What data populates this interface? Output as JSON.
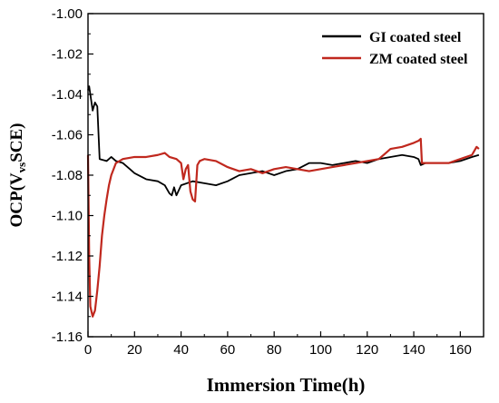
{
  "chart_data": {
    "type": "line",
    "xlabel": "Immersion Time(h)",
    "ylabel": {
      "main": "OCP(V",
      "sub": "vs",
      "tail": "SCE)"
    },
    "xlim": [
      0,
      170
    ],
    "ylim": [
      -1.16,
      -1.0
    ],
    "x_ticks": [
      0,
      20,
      40,
      60,
      80,
      100,
      120,
      140,
      160
    ],
    "x_tick_labels": [
      "0",
      "20",
      "40",
      "60",
      "80",
      "100",
      "120",
      "140",
      "160"
    ],
    "y_ticks": [
      -1.16,
      -1.14,
      -1.12,
      -1.1,
      -1.08,
      -1.06,
      -1.04,
      -1.02,
      -1.0
    ],
    "y_tick_labels": [
      "-1.16",
      "-1.14",
      "-1.12",
      "-1.10",
      "-1.08",
      "-1.06",
      "-1.04",
      "-1.02",
      "-1.00"
    ],
    "grid": false,
    "legend_position": "top-right",
    "series": [
      {
        "name": "GI coated steel",
        "color": "#000000",
        "points": [
          [
            0,
            -1.038
          ],
          [
            0.5,
            -1.036
          ],
          [
            1,
            -1.04
          ],
          [
            2,
            -1.048
          ],
          [
            3,
            -1.044
          ],
          [
            4,
            -1.046
          ],
          [
            5,
            -1.072
          ],
          [
            8,
            -1.073
          ],
          [
            10,
            -1.071
          ],
          [
            12,
            -1.073
          ],
          [
            15,
            -1.074
          ],
          [
            18,
            -1.077
          ],
          [
            20,
            -1.079
          ],
          [
            25,
            -1.082
          ],
          [
            30,
            -1.083
          ],
          [
            33,
            -1.085
          ],
          [
            35,
            -1.089
          ],
          [
            36,
            -1.09
          ],
          [
            37,
            -1.086
          ],
          [
            38,
            -1.09
          ],
          [
            40,
            -1.085
          ],
          [
            45,
            -1.083
          ],
          [
            50,
            -1.084
          ],
          [
            55,
            -1.085
          ],
          [
            60,
            -1.083
          ],
          [
            65,
            -1.08
          ],
          [
            70,
            -1.079
          ],
          [
            75,
            -1.078
          ],
          [
            80,
            -1.08
          ],
          [
            85,
            -1.078
          ],
          [
            90,
            -1.077
          ],
          [
            95,
            -1.074
          ],
          [
            100,
            -1.074
          ],
          [
            105,
            -1.075
          ],
          [
            110,
            -1.074
          ],
          [
            115,
            -1.073
          ],
          [
            120,
            -1.074
          ],
          [
            125,
            -1.072
          ],
          [
            130,
            -1.071
          ],
          [
            135,
            -1.07
          ],
          [
            140,
            -1.071
          ],
          [
            142,
            -1.072
          ],
          [
            143,
            -1.075
          ],
          [
            145,
            -1.074
          ],
          [
            150,
            -1.074
          ],
          [
            155,
            -1.074
          ],
          [
            160,
            -1.073
          ],
          [
            165,
            -1.071
          ],
          [
            168,
            -1.07
          ]
        ]
      },
      {
        "name": "ZM coated steel",
        "color": "#c0281e",
        "points": [
          [
            0,
            -1.07
          ],
          [
            0.5,
            -1.12
          ],
          [
            1,
            -1.145
          ],
          [
            2,
            -1.15
          ],
          [
            3,
            -1.147
          ],
          [
            4,
            -1.137
          ],
          [
            5,
            -1.125
          ],
          [
            6,
            -1.11
          ],
          [
            7,
            -1.1
          ],
          [
            8,
            -1.092
          ],
          [
            9,
            -1.085
          ],
          [
            10,
            -1.08
          ],
          [
            12,
            -1.074
          ],
          [
            15,
            -1.072
          ],
          [
            20,
            -1.071
          ],
          [
            25,
            -1.071
          ],
          [
            30,
            -1.07
          ],
          [
            33,
            -1.069
          ],
          [
            35,
            -1.071
          ],
          [
            38,
            -1.072
          ],
          [
            40,
            -1.074
          ],
          [
            41,
            -1.082
          ],
          [
            42,
            -1.077
          ],
          [
            43,
            -1.075
          ],
          [
            44,
            -1.088
          ],
          [
            45,
            -1.092
          ],
          [
            46,
            -1.093
          ],
          [
            47,
            -1.075
          ],
          [
            48,
            -1.073
          ],
          [
            50,
            -1.072
          ],
          [
            55,
            -1.073
          ],
          [
            60,
            -1.076
          ],
          [
            65,
            -1.078
          ],
          [
            70,
            -1.077
          ],
          [
            75,
            -1.079
          ],
          [
            80,
            -1.077
          ],
          [
            85,
            -1.076
          ],
          [
            90,
            -1.077
          ],
          [
            95,
            -1.078
          ],
          [
            100,
            -1.077
          ],
          [
            105,
            -1.076
          ],
          [
            110,
            -1.075
          ],
          [
            115,
            -1.074
          ],
          [
            120,
            -1.073
          ],
          [
            125,
            -1.072
          ],
          [
            128,
            -1.069
          ],
          [
            130,
            -1.067
          ],
          [
            135,
            -1.066
          ],
          [
            140,
            -1.064
          ],
          [
            142,
            -1.063
          ],
          [
            143,
            -1.062
          ],
          [
            143.5,
            -1.074
          ],
          [
            145,
            -1.074
          ],
          [
            150,
            -1.074
          ],
          [
            155,
            -1.074
          ],
          [
            160,
            -1.072
          ],
          [
            165,
            -1.07
          ],
          [
            167,
            -1.066
          ],
          [
            168,
            -1.067
          ]
        ]
      }
    ]
  }
}
